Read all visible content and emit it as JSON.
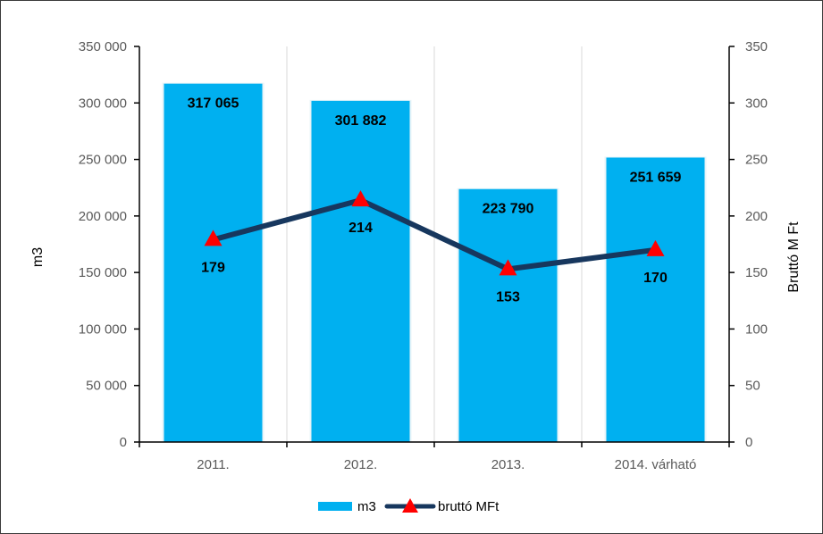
{
  "chart_data": {
    "type": "bar",
    "categories": [
      "2011.",
      "2012.",
      "2013.",
      "2014. várható"
    ],
    "series": [
      {
        "name": "m3",
        "type": "bar",
        "axis": "left",
        "values": [
          317065,
          301882,
          223790,
          251659
        ],
        "labels": [
          "317 065",
          "301 882",
          "223 790",
          "251 659"
        ],
        "color": "#00B0F0"
      },
      {
        "name": "bruttó MFt",
        "type": "line",
        "axis": "right",
        "values": [
          179,
          214,
          153,
          170
        ],
        "labels": [
          "179",
          "214",
          "153",
          "170"
        ],
        "color": "#17375E",
        "marker": "triangle",
        "marker_color": "#FF0000"
      }
    ],
    "ylabel": "m3",
    "ylabel_right": "Bruttó M Ft",
    "ylim": [
      0,
      350000
    ],
    "ylim_right": [
      0,
      350
    ],
    "yticks": [
      "0",
      "50 000",
      "100 000",
      "150 000",
      "200 000",
      "250 000",
      "300 000",
      "350 000"
    ],
    "yticks_right": [
      "0",
      "50",
      "100",
      "150",
      "200",
      "250",
      "300",
      "350"
    ],
    "grid": "vertical",
    "legend": "bottom"
  }
}
